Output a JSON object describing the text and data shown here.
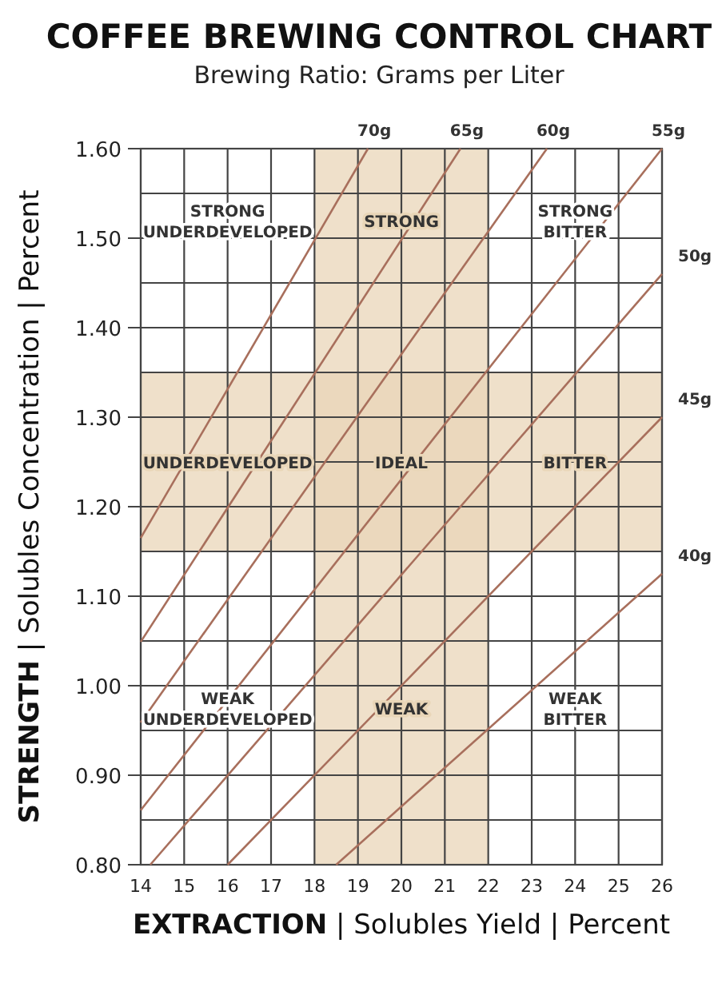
{
  "chart_data": {
    "type": "line",
    "title": "COFFEE BREWING CONTROL CHART",
    "subtitle": "Brewing Ratio: Grams per Liter",
    "xlabel": "EXTRACTION | Solubles Yield | Percent",
    "ylabel": "STRENGTH | Solubles Concentration | Percent",
    "xlim": [
      14,
      26
    ],
    "xticks": [
      14,
      15,
      16,
      17,
      18,
      19,
      20,
      21,
      22,
      23,
      24,
      25,
      26
    ],
    "ylim": [
      0.8,
      1.6
    ],
    "yticks": [
      {
        "value": 0.8,
        "label": "0.80"
      },
      {
        "value": 0.85,
        "label": null
      },
      {
        "value": 0.9,
        "label": "0.90"
      },
      {
        "value": 0.95,
        "label": null
      },
      {
        "value": 1.0,
        "label": "1.00"
      },
      {
        "value": 1.05,
        "label": null
      },
      {
        "value": 1.1,
        "label": "1.10"
      },
      {
        "value": 1.15,
        "label": null
      },
      {
        "value": 1.2,
        "label": "1.20"
      },
      {
        "value": 1.25,
        "label": null
      },
      {
        "value": 1.3,
        "label": "1.30"
      },
      {
        "value": 1.35,
        "label": null
      },
      {
        "value": 1.4,
        "label": "1.40"
      },
      {
        "value": 1.45,
        "label": null
      },
      {
        "value": 1.5,
        "label": "1.50"
      },
      {
        "value": 1.55,
        "label": null
      },
      {
        "value": 1.6,
        "label": "1.60"
      }
    ],
    "grid": true,
    "marker": "none",
    "line_style": "solid",
    "series": [
      {
        "name": "70g",
        "color": "#a86f5c",
        "x": [
          14,
          19.23
        ],
        "values": [
          1.165,
          1.6
        ]
      },
      {
        "name": "65g",
        "color": "#a86f5c",
        "x": [
          14,
          21.36
        ],
        "values": [
          1.049,
          1.6
        ]
      },
      {
        "name": "60g",
        "color": "#a86f5c",
        "x": [
          14,
          23.35
        ],
        "values": [
          0.959,
          1.6
        ]
      },
      {
        "name": "55g",
        "color": "#a86f5c",
        "x": [
          14,
          26
        ],
        "values": [
          0.861,
          1.6
        ]
      },
      {
        "name": "50g",
        "color": "#a86f5c",
        "x": [
          14.22,
          26
        ],
        "values": [
          0.8,
          1.46
        ]
      },
      {
        "name": "45g",
        "color": "#a86f5c",
        "x": [
          16,
          26
        ],
        "values": [
          0.8,
          1.3
        ]
      },
      {
        "name": "40g",
        "color": "#a86f5c",
        "x": [
          18.5,
          26
        ],
        "values": [
          0.8,
          1.125
        ]
      }
    ],
    "bands": [
      {
        "axis": "x",
        "from": 18,
        "to": 22,
        "label": null,
        "color": "#e9d6b8"
      },
      {
        "axis": "y",
        "from": 1.15,
        "to": 1.35,
        "label": null,
        "color": "#e9d6b8"
      }
    ],
    "annotations": [
      "STRONG UNDERDEVELOPED",
      "STRONG",
      "STRONG BITTER",
      "UNDERDEVELOPED",
      "IDEAL",
      "BITTER",
      "WEAK UNDERDEVELOPED",
      "WEAK",
      "WEAK BITTER"
    ]
  }
}
